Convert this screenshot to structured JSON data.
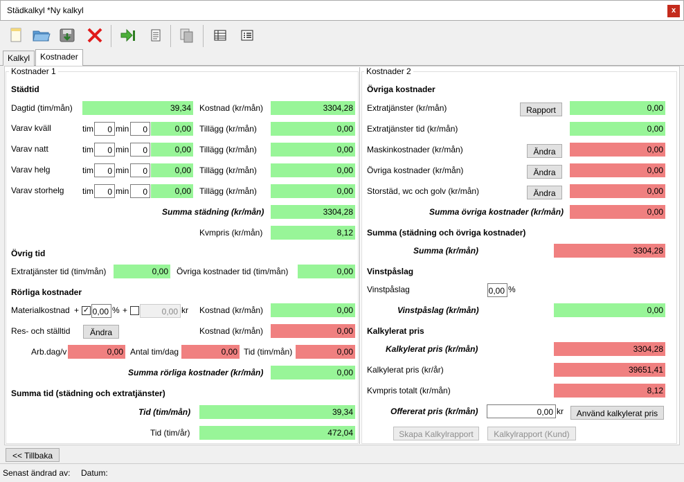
{
  "window": {
    "title": "Städkalkyl *Ny kalkyl",
    "close": "x"
  },
  "toolbar": {
    "icons": [
      "new-file-icon",
      "open-folder-icon",
      "save-icon",
      "delete-icon",
      "export-icon",
      "document-icon",
      "copy-icon",
      "table-icon",
      "list-icon"
    ]
  },
  "tabs": [
    "Kalkyl",
    "Kostnader"
  ],
  "left": {
    "group_title": "Kostnader 1",
    "stadtid": {
      "heading": "Städtid",
      "dagtid_label": "Dagtid (tim/mån)",
      "dagtid_value": "39,34",
      "kostnad_label": "Kostnad (kr/mån)",
      "kostnad_value": "3304,28",
      "tim": "tim",
      "min": "min",
      "rows": [
        {
          "label": "Varav kväll",
          "tim": "0",
          "min": "0",
          "value": "0,00",
          "tillagg_label": "Tillägg (kr/mån)",
          "tillagg": "0,00"
        },
        {
          "label": "Varav natt",
          "tim": "0",
          "min": "0",
          "value": "0,00",
          "tillagg_label": "Tillägg (kr/mån)",
          "tillagg": "0,00"
        },
        {
          "label": "Varav helg",
          "tim": "0",
          "min": "0",
          "value": "0,00",
          "tillagg_label": "Tillägg (kr/mån)",
          "tillagg": "0,00"
        },
        {
          "label": "Varav storhelg",
          "tim": "0",
          "min": "0",
          "value": "0,00",
          "tillagg_label": "Tillägg (kr/mån)",
          "tillagg": "0,00"
        }
      ],
      "summa_label": "Summa städning (kr/mån)",
      "summa_value": "3304,28",
      "kvmpris_label": "Kvmpris (kr/mån)",
      "kvmpris_value": "8,12"
    },
    "ovrig_tid": {
      "heading": "Övrig tid",
      "extra_label": "Extratjänster tid (tim/mån)",
      "extra_value": "0,00",
      "ovriga_label": "Övriga kostnader tid (tim/mån)",
      "ovriga_value": "0,00"
    },
    "rorliga": {
      "heading": "Rörliga kostnader",
      "material_label": "Materialkostnad",
      "plus1": "+",
      "pct_value": "0,00",
      "pct": "%",
      "plus2": "+",
      "kr_value": "0,00",
      "kr": "kr",
      "kostnad1_label": "Kostnad (kr/mån)",
      "kostnad1_value": "0,00",
      "res_label": "Res- och ställtid",
      "andra": "Ändra",
      "kostnad2_label": "Kostnad (kr/mån)",
      "kostnad2_value": "0,00",
      "arbdag_label": "Arb.dag/v",
      "arbdag_value": "0,00",
      "antal_label": "Antal tim/dag",
      "antal_value": "0,00",
      "tid_label": "Tid (tim/mån)",
      "tid_value": "0,00",
      "summa_label": "Summa rörliga kostnader (kr/mån)",
      "summa_value": "0,00"
    },
    "summa_tid": {
      "heading": "Summa tid (städning och extratjänster)",
      "tid_man_label": "Tid (tim/mån)",
      "tid_man_value": "39,34",
      "tid_ar_label": "Tid (tim/år)",
      "tid_ar_value": "472,04"
    }
  },
  "right": {
    "group_title": "Kostnader 2",
    "ovriga": {
      "heading": "Övriga kostnader",
      "rows": [
        {
          "label": "Extratjänster (kr/mån)",
          "button": "Rapport",
          "value": "0,00",
          "color": "green"
        },
        {
          "label": "Extratjänster tid (kr/mån)",
          "button": "",
          "value": "0,00",
          "color": "green"
        },
        {
          "label": "Maskinkostnader (kr/mån)",
          "button": "Ändra",
          "value": "0,00",
          "color": "red"
        },
        {
          "label": "Övriga kostnader (kr/mån)",
          "button": "Ändra",
          "value": "0,00",
          "color": "red"
        },
        {
          "label": "Storstäd, wc och golv (kr/mån)",
          "button": "Ändra",
          "value": "0,00",
          "color": "red"
        }
      ],
      "summa_label": "Summa övriga kostnader (kr/mån)",
      "summa_value": "0,00"
    },
    "summa": {
      "heading": "Summa (städning och övriga kostnader)",
      "label": "Summa (kr/mån)",
      "value": "3304,28"
    },
    "vinst": {
      "heading": "Vinstpåslag",
      "label": "Vinstpåslag",
      "input": "0,00",
      "pct": "%",
      "sum_label": "Vinstpåslag (kr/mån)",
      "sum_value": "0,00"
    },
    "kalk": {
      "heading": "Kalkylerat pris",
      "man_label": "Kalkylerat pris (kr/mån)",
      "man_value": "3304,28",
      "ar_label": "Kalkylerat pris (kr/år)",
      "ar_value": "39651,41",
      "kvm_label": "Kvmpris totalt (kr/mån)",
      "kvm_value": "8,12",
      "off_label": "Offererat pris (kr/mån)",
      "off_value": "0,00",
      "kr": "kr",
      "use_button": "Använd kalkylerat pris",
      "report_button": "Skapa Kalkylrapport",
      "report_kund_button": "Kalkylrapport (Kund)"
    }
  },
  "back_button": "<< Tillbaka",
  "status": {
    "changed_by": "Senast ändrad av:",
    "date": "Datum:"
  },
  "colors": {
    "green": "#98f598",
    "red": "#f08080"
  }
}
